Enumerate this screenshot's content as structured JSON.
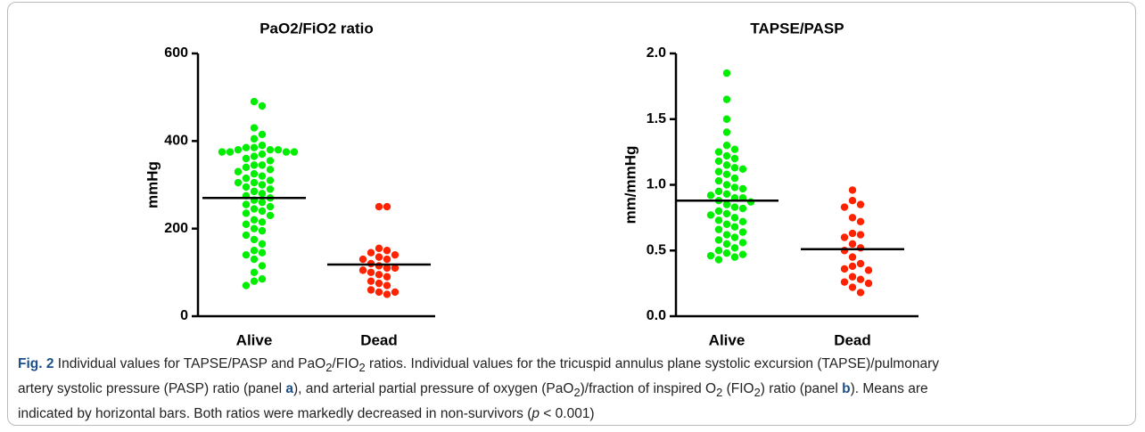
{
  "chart_data": [
    {
      "type": "dot",
      "title": "PaO2/FiO2 ratio",
      "y_label": "mmHg",
      "categories": [
        "Alive",
        "Dead"
      ],
      "ylim": [
        0,
        600
      ],
      "yticks": [
        0,
        200,
        400,
        600
      ],
      "groups": [
        {
          "color": "#00ee00",
          "mean": 270,
          "values": [
            490,
            480,
            430,
            415,
            405,
            390,
            385,
            385,
            380,
            380,
            380,
            375,
            375,
            375,
            375,
            370,
            365,
            360,
            355,
            345,
            345,
            340,
            335,
            330,
            325,
            320,
            315,
            310,
            305,
            305,
            300,
            295,
            290,
            285,
            280,
            275,
            270,
            265,
            260,
            255,
            250,
            245,
            240,
            235,
            230,
            220,
            215,
            210,
            200,
            195,
            185,
            175,
            165,
            150,
            145,
            140,
            130,
            115,
            100,
            85,
            80,
            70
          ]
        },
        {
          "color": "#ff2200",
          "mean": 118,
          "values": [
            250,
            250,
            155,
            150,
            145,
            140,
            135,
            130,
            130,
            120,
            115,
            110,
            110,
            105,
            100,
            95,
            90,
            80,
            75,
            70,
            60,
            55,
            55,
            50
          ]
        }
      ]
    },
    {
      "type": "dot",
      "title": "TAPSE/PASP",
      "y_label": "mm/mmHg",
      "categories": [
        "Alive",
        "Dead"
      ],
      "ylim": [
        0,
        2
      ],
      "yticks": [
        {
          "value": 0,
          "label": "0.0"
        },
        0.5,
        {
          "value": 1,
          "label": "1.0"
        },
        1.5,
        {
          "value": 2,
          "label": "2.0"
        }
      ],
      "groups": [
        {
          "color": "#00ee00",
          "mean": 0.88,
          "values": [
            1.85,
            1.65,
            1.5,
            1.4,
            1.3,
            1.27,
            1.25,
            1.22,
            1.2,
            1.18,
            1.15,
            1.13,
            1.12,
            1.1,
            1.08,
            1.05,
            1.03,
            1.0,
            0.98,
            0.97,
            0.95,
            0.93,
            0.92,
            0.9,
            0.9,
            0.88,
            0.87,
            0.85,
            0.83,
            0.82,
            0.8,
            0.78,
            0.77,
            0.75,
            0.73,
            0.72,
            0.7,
            0.68,
            0.66,
            0.64,
            0.62,
            0.6,
            0.58,
            0.56,
            0.55,
            0.52,
            0.5,
            0.48,
            0.47,
            0.46,
            0.45,
            0.43
          ]
        },
        {
          "color": "#ff2200",
          "mean": 0.51,
          "values": [
            0.96,
            0.88,
            0.85,
            0.83,
            0.75,
            0.72,
            0.63,
            0.62,
            0.6,
            0.55,
            0.52,
            0.5,
            0.45,
            0.4,
            0.38,
            0.36,
            0.35,
            0.3,
            0.28,
            0.26,
            0.25,
            0.22,
            0.18
          ]
        }
      ]
    }
  ],
  "caption": {
    "lines": [
      [
        {
          "text": "Fig. 2",
          "format": "bold"
        },
        "  Individual values for TAPSE/PASP and PaO",
        {
          "text": "2",
          "format": "sub"
        },
        "/FIO",
        {
          "text": "2",
          "format": "sub"
        },
        " ratios. Individual values for the tricuspid annulus plane systolic excursion (TAPSE)/pulmonary"
      ],
      [
        "artery systolic pressure (PASP) ratio (panel ",
        {
          "text": "a",
          "format": "bold"
        },
        "), and arterial partial pressure of oxygen (PaO",
        {
          "text": "2",
          "format": "sub"
        },
        ")/fraction of inspired O",
        {
          "text": "2",
          "format": "sub"
        },
        " (FIO",
        {
          "text": "2",
          "format": "sub"
        },
        ") ratio (panel ",
        {
          "text": "b",
          "format": "bold"
        },
        "). Means are"
      ],
      [
        "indicated by horizontal bars. Both ratios were markedly decreased in non-survivors (",
        {
          "text": "p",
          "format": "italic"
        },
        " < 0.001)"
      ]
    ]
  }
}
